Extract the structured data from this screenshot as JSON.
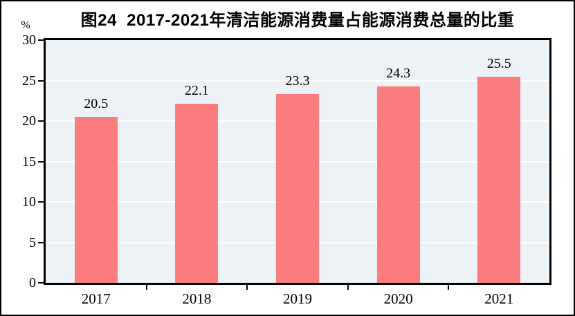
{
  "colors": {
    "bar": "#FC7D7D",
    "plot_bg": "#ECF2F5",
    "gridline": "#FFFFFF",
    "axis": "#000000",
    "text": "#000000"
  },
  "chart_data": {
    "type": "bar",
    "title": "图24  2017-2021年清洁能源消费量占能源消费总量的比重",
    "unit_label": "%",
    "categories": [
      "2017",
      "2018",
      "2019",
      "2020",
      "2021"
    ],
    "values": [
      20.5,
      22.1,
      23.3,
      24.3,
      25.5
    ],
    "data_labels": [
      "20.5",
      "22.1",
      "23.3",
      "24.3",
      "25.5"
    ],
    "xlabel": "",
    "ylabel": "%",
    "ylim": [
      0,
      30
    ],
    "yticks": [
      0,
      5,
      10,
      15,
      20,
      25,
      30
    ],
    "grid": true,
    "legend_position": "none"
  }
}
